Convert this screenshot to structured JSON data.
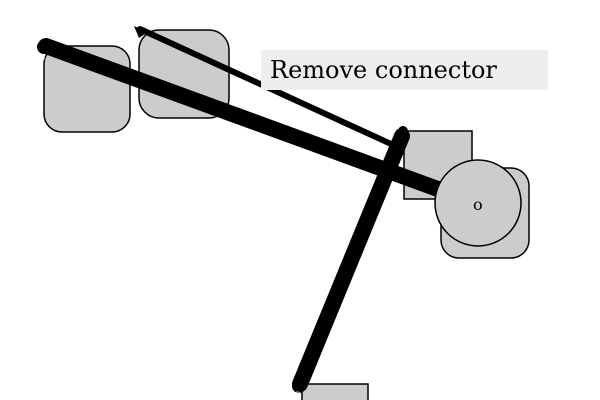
{
  "tooltip": {
    "text": "Remove connector"
  },
  "nodes": {
    "circle_label": "o"
  },
  "colors": {
    "node_fill": "#cccccc",
    "node_stroke": "#000000",
    "connector": "#000000",
    "tooltip_bg": "#eeeeee",
    "background": "#ffffff"
  }
}
